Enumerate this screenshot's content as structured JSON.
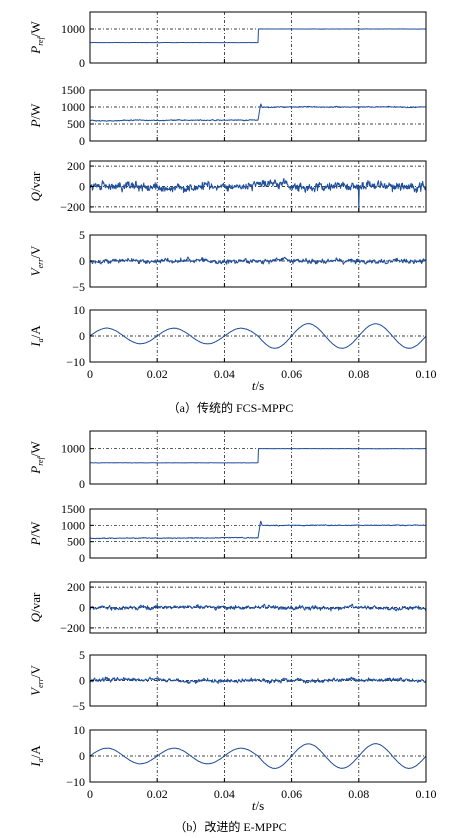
{
  "figure": {
    "caption_a": "（a）传统的 FCS-MPPC",
    "caption_b": "（b）改进的 E-MPPC",
    "time_axis_label": "t/s",
    "time_ticks": [
      "0",
      "0.02",
      "0.04",
      "0.06",
      "0.08",
      "0.10"
    ]
  },
  "colors": {
    "trace": "#1f4e9a",
    "axis": "#000000",
    "grid": "#000000"
  },
  "chart_data": [
    {
      "group": "a",
      "name": "p_ref_a",
      "type": "line",
      "ylabel": "P_ref/W",
      "ylim": [
        0,
        1500
      ],
      "yticks": [
        0,
        1000
      ],
      "ytick_labels": [
        "0",
        "1000"
      ],
      "x": [
        0,
        0.05,
        0.0501,
        0.1
      ],
      "y": [
        600,
        600,
        1000,
        1000
      ],
      "noise": 6,
      "xlim": [
        0,
        0.1
      ],
      "grid": true,
      "show_xticks": false
    },
    {
      "group": "a",
      "name": "p_a",
      "type": "line",
      "ylabel": "P/W",
      "ylim": [
        0,
        1500
      ],
      "yticks": [
        0,
        500,
        1000,
        1500
      ],
      "ytick_labels": [
        "0",
        "500",
        "1000",
        "1500"
      ],
      "x": [
        0,
        0.05,
        0.0508,
        0.0512,
        0.1
      ],
      "y": [
        600,
        620,
        1100,
        1000,
        1000
      ],
      "noise": 25,
      "xlim": [
        0,
        0.1
      ],
      "grid": true,
      "show_xticks": false
    },
    {
      "group": "a",
      "name": "q_a",
      "type": "line",
      "ylabel": "Q/var",
      "ylim": [
        -250,
        250
      ],
      "yticks": [
        -200,
        0,
        200
      ],
      "ytick_labels": [
        "−200",
        "0",
        "200"
      ],
      "x": [
        0,
        0.1
      ],
      "y": [
        0,
        0
      ],
      "noise": 75,
      "spike": {
        "x": 0.08,
        "y": -250
      },
      "xlim": [
        0,
        0.1
      ],
      "grid": true,
      "show_xticks": false
    },
    {
      "group": "a",
      "name": "v_err_a",
      "type": "line",
      "ylabel": "V_err/V",
      "ylim": [
        -5,
        5
      ],
      "yticks": [
        -5,
        0,
        5
      ],
      "ytick_labels": [
        "−5",
        "0",
        "5"
      ],
      "x": [
        0,
        0.1
      ],
      "y": [
        0,
        0
      ],
      "noise": 0.8,
      "xlim": [
        0,
        0.1
      ],
      "grid": true,
      "show_xticks": false
    },
    {
      "group": "a",
      "name": "i_a_a",
      "type": "sine",
      "ylabel": "I_a/A",
      "ylim": [
        -10,
        10
      ],
      "yticks": [
        -10,
        0,
        10
      ],
      "ytick_labels": [
        "−10",
        "0",
        "10"
      ],
      "amplitude_before": 3.0,
      "amplitude_after": 4.7,
      "step_time": 0.05,
      "period": 0.02,
      "phase_deg": 0,
      "xlim": [
        0,
        0.1
      ],
      "grid": true,
      "show_xticks": true
    },
    {
      "group": "b",
      "name": "p_ref_b",
      "type": "line",
      "ylabel": "P_ref/W",
      "ylim": [
        0,
        1500
      ],
      "yticks": [
        0,
        1000
      ],
      "ytick_labels": [
        "0",
        "1000"
      ],
      "x": [
        0,
        0.05,
        0.0501,
        0.1
      ],
      "y": [
        600,
        600,
        1000,
        1000
      ],
      "noise": 6,
      "xlim": [
        0,
        0.1
      ],
      "grid": true,
      "show_xticks": false
    },
    {
      "group": "b",
      "name": "p_b",
      "type": "line",
      "ylabel": "P/W",
      "ylim": [
        0,
        1500
      ],
      "yticks": [
        0,
        500,
        1000,
        1500
      ],
      "ytick_labels": [
        "0",
        "500",
        "1000",
        "1500"
      ],
      "x": [
        0,
        0.05,
        0.0508,
        0.0512,
        0.1
      ],
      "y": [
        600,
        620,
        1150,
        1000,
        1000
      ],
      "noise": 22,
      "xlim": [
        0,
        0.1
      ],
      "grid": true,
      "show_xticks": false
    },
    {
      "group": "b",
      "name": "q_b",
      "type": "line",
      "ylabel": "Q/var",
      "ylim": [
        -250,
        250
      ],
      "yticks": [
        -200,
        0,
        200
      ],
      "ytick_labels": [
        "−200",
        "0",
        "200"
      ],
      "x": [
        0,
        0.1
      ],
      "y": [
        0,
        0
      ],
      "noise": 35,
      "xlim": [
        0,
        0.1
      ],
      "grid": true,
      "show_xticks": false
    },
    {
      "group": "b",
      "name": "v_err_b",
      "type": "line",
      "ylabel": "V_err/V",
      "ylim": [
        -5,
        5
      ],
      "yticks": [
        -5,
        0,
        5
      ],
      "ytick_labels": [
        "−5",
        "0",
        "5"
      ],
      "x": [
        0,
        0.1
      ],
      "y": [
        0,
        0
      ],
      "noise": 0.7,
      "xlim": [
        0,
        0.1
      ],
      "grid": true,
      "show_xticks": false
    },
    {
      "group": "b",
      "name": "i_a_b",
      "type": "sine",
      "ylabel": "I_a/A",
      "ylim": [
        -10,
        10
      ],
      "yticks": [
        -10,
        0,
        10
      ],
      "ytick_labels": [
        "−10",
        "0",
        "10"
      ],
      "amplitude_before": 3.0,
      "amplitude_after": 4.7,
      "step_time": 0.05,
      "period": 0.02,
      "phase_deg": 0,
      "xlim": [
        0,
        0.1
      ],
      "grid": true,
      "show_xticks": true
    }
  ]
}
